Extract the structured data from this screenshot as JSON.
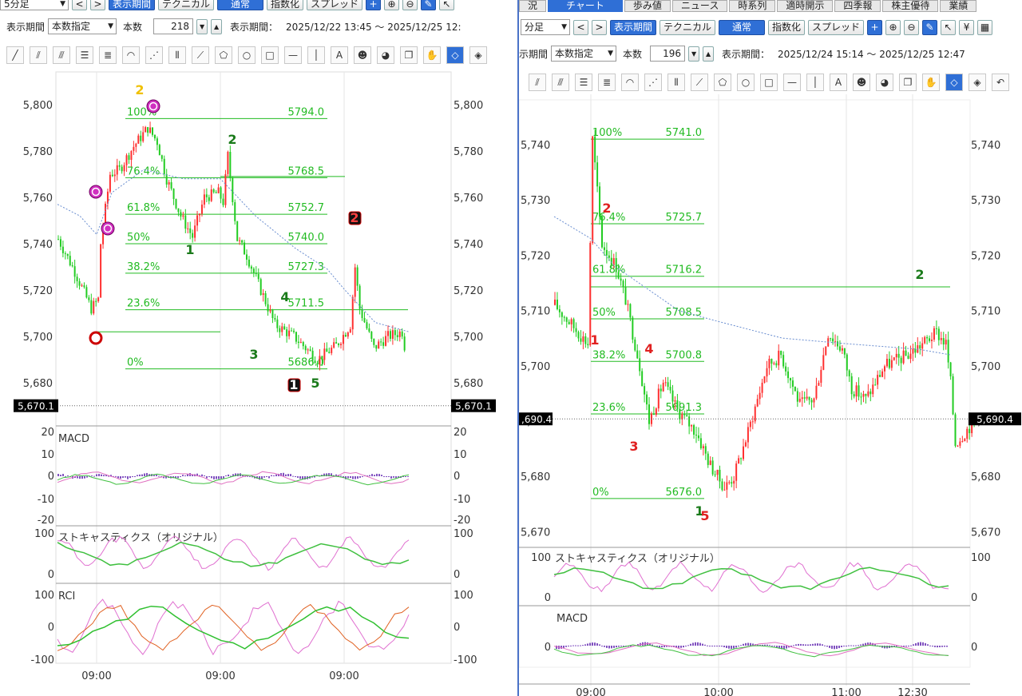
{
  "left": {
    "timeframe": "5分足",
    "nav_prev": "<",
    "nav_next": ">",
    "toolbar_top": [
      "表示期間",
      "テクニカル",
      "通常",
      "指数化",
      "スプレッド"
    ],
    "period_label": "表示期間",
    "period_select": "本数指定",
    "count_label": "本数",
    "count_value": "218",
    "range_label": "表示期間：",
    "range_value": "2025/12/22 13:45 ～ 2025/12/25 12:",
    "price_axis": [
      "5,800",
      "5,780",
      "5,760",
      "5,740",
      "5,720",
      "5,700",
      "5,680"
    ],
    "current_price": "5,670.1",
    "fib": [
      {
        "pct": "100%",
        "value": "5794.0"
      },
      {
        "pct": "76.4%",
        "value": "5768.5"
      },
      {
        "pct": "61.8%",
        "value": "5752.7"
      },
      {
        "pct": "50%",
        "value": "5740.0"
      },
      {
        "pct": "38.2%",
        "value": "5727.3"
      },
      {
        "pct": "23.6%",
        "value": "5711.5"
      },
      {
        "pct": "0%",
        "value": "5686.0"
      }
    ],
    "wave_labels": [
      "2",
      "2",
      "1",
      "4",
      "3",
      "5",
      "2",
      "1"
    ],
    "macd": {
      "title": "MACD",
      "axis": [
        "20",
        "10",
        "0",
        "-10",
        "-20"
      ]
    },
    "stoch": {
      "title": "ストキャスティクス（オリジナル）",
      "axis": [
        "100",
        "0"
      ]
    },
    "rci": {
      "title": "RCI",
      "axis": [
        "100",
        "0",
        "-100"
      ]
    },
    "time_axis": [
      "09:00",
      "09:00",
      "09:00"
    ]
  },
  "right": {
    "tabs": [
      "況",
      "チャート",
      "歩み値",
      "ニュース",
      "時系列",
      "適時開示",
      "四季報",
      "株主優待",
      "業績"
    ],
    "timeframe": "分足",
    "nav_prev": "<",
    "nav_next": ">",
    "toolbar_top": [
      "表示期間",
      "テクニカル",
      "通常",
      "指数化",
      "スプレッド"
    ],
    "period_label": "示期間",
    "period_select": "本数指定",
    "count_label": "本数",
    "count_value": "196",
    "range_label": "表示期間：",
    "range_value": "2025/12/24 15:14 ～ 2025/12/25 12:47",
    "price_axis": [
      "5,740",
      "5,730",
      "5,720",
      "5,710",
      "5,700",
      "5,690",
      "5,680",
      "5,670"
    ],
    "current_price": "5,690.4",
    "current_price_left": ",690.4",
    "fib": [
      {
        "pct": "100%",
        "value": "5741.0"
      },
      {
        "pct": "76.4%",
        "value": "5725.7"
      },
      {
        "pct": "61.8%",
        "value": "5716.2"
      },
      {
        "pct": "50%",
        "value": "5708.5"
      },
      {
        "pct": "38.2%",
        "value": "5700.8"
      },
      {
        "pct": "23.6%",
        "value": "5691.3"
      },
      {
        "pct": "0%",
        "value": "5676.0"
      }
    ],
    "wave_labels": [
      "1",
      "2",
      "3",
      "4",
      "1",
      "5",
      "2"
    ],
    "stoch": {
      "title": "ストキャスティクス（オリジナル）",
      "axis": [
        "100",
        "0"
      ]
    },
    "macd": {
      "title": "MACD",
      "axis": [
        "0"
      ]
    },
    "time_axis": [
      "09:00",
      "10:00",
      "11:00",
      "12:30"
    ]
  },
  "colors": {
    "up": "#ff3030",
    "down": "#22cc22",
    "fib": "#22bb22",
    "vwap": "#6a8ed0",
    "accent": "#2f6fd6"
  }
}
